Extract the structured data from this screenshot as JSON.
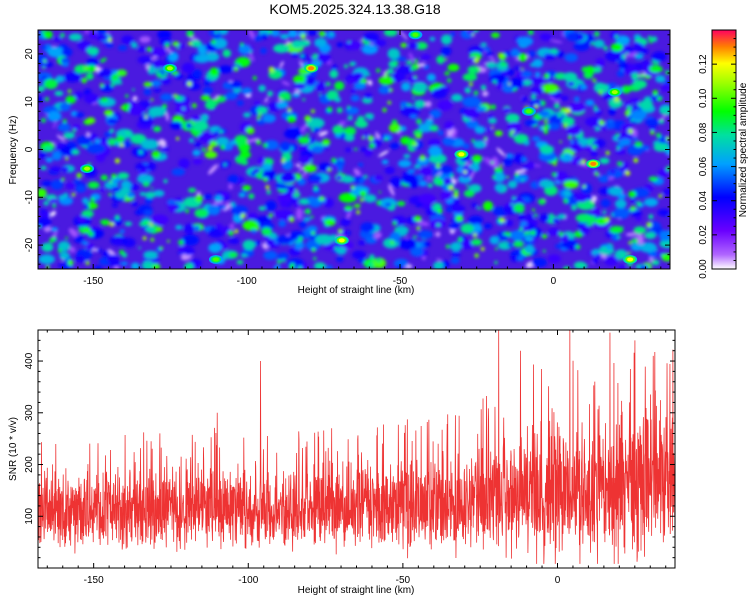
{
  "title": "KOM5.2025.324.13.38.G18",
  "chart_data": [
    {
      "type": "heatmap",
      "xlabel": "Height of straight line (km)",
      "ylabel": "Frequency (Hz)",
      "xlim": [
        -168,
        38
      ],
      "ylim": [
        -25,
        25
      ],
      "xticks": [
        -150,
        -100,
        -50,
        0
      ],
      "yticks": [
        -20,
        -10,
        0,
        10,
        20
      ],
      "xtick_labels": [
        "-150",
        "-100",
        "-50",
        "0"
      ],
      "ytick_labels": [
        "-20",
        "-10",
        "0",
        "10",
        "20"
      ],
      "colorbar": {
        "label": "Normalized spectral amplitude",
        "range": [
          0.0,
          0.14
        ],
        "ticks": [
          0.0,
          0.02,
          0.04,
          0.06,
          0.08,
          0.1,
          0.12
        ],
        "tick_labels": [
          "0.00",
          "0.02",
          "0.04",
          "0.06",
          "0.08",
          "0.10",
          "0.12"
        ]
      },
      "hotspots": [
        {
          "x": -79,
          "y": 17,
          "v": 0.13
        },
        {
          "x": -125,
          "y": 17,
          "v": 0.11
        },
        {
          "x": -30,
          "y": -1,
          "v": 0.12
        },
        {
          "x": 13,
          "y": -3,
          "v": 0.13
        },
        {
          "x": -152,
          "y": -4,
          "v": 0.11
        },
        {
          "x": -69,
          "y": -19,
          "v": 0.12
        },
        {
          "x": -110,
          "y": -23,
          "v": 0.1
        },
        {
          "x": -8,
          "y": 8,
          "v": 0.1
        },
        {
          "x": 20,
          "y": 12,
          "v": 0.11
        },
        {
          "x": 25,
          "y": -23,
          "v": 0.12
        },
        {
          "x": -45,
          "y": 24,
          "v": 0.1
        }
      ]
    },
    {
      "type": "line",
      "xlabel": "Height of straight line (km)",
      "ylabel": "SNR (10 * v/v)",
      "xlim": [
        -168,
        38
      ],
      "ylim": [
        0,
        460
      ],
      "xticks": [
        -150,
        -100,
        -50,
        0
      ],
      "yticks": [
        100,
        200,
        300,
        400
      ],
      "xtick_labels": [
        "-150",
        "-100",
        "-50",
        "0"
      ],
      "ytick_labels": [
        "100",
        "200",
        "300",
        "400"
      ],
      "series": [
        {
          "name": "SNR",
          "color": "#ee3333",
          "trend_x": [
            -168,
            -150,
            -130,
            -110,
            -90,
            -70,
            -50,
            -30,
            -15,
            0,
            15,
            30,
            38
          ],
          "trend_mean": [
            110,
            110,
            112,
            115,
            112,
            115,
            118,
            122,
            135,
            145,
            150,
            160,
            165
          ],
          "trend_spread": [
            80,
            85,
            90,
            92,
            90,
            95,
            100,
            110,
            140,
            160,
            170,
            180,
            160
          ],
          "peaks": [
            {
              "x": -19,
              "y": 460
            },
            {
              "x": 4,
              "y": 460
            },
            {
              "x": -96,
              "y": 400
            },
            {
              "x": -12,
              "y": 420
            },
            {
              "x": 17,
              "y": 455
            },
            {
              "x": 25,
              "y": 440
            },
            {
              "x": 31,
              "y": 410
            },
            {
              "x": -168,
              "y": 255
            },
            {
              "x": -110,
              "y": 300
            }
          ]
        }
      ]
    }
  ]
}
